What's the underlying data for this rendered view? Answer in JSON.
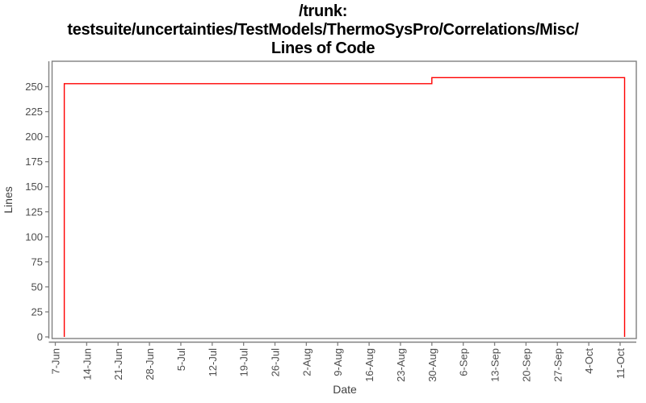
{
  "title": {
    "line1": "/trunk:",
    "line2": "testsuite/uncertainties/TestModels/ThermoSysPro/Correlations/Misc/",
    "line3": "Lines of Code"
  },
  "chart_data": {
    "type": "line",
    "line_style": "step",
    "title": "/trunk: testsuite/uncertainties/TestModels/ThermoSysPro/Correlations/Misc/ Lines of Code",
    "xlabel": "Date",
    "ylabel": "Lines",
    "grid": false,
    "legend": false,
    "ylim": [
      0,
      276
    ],
    "y_ticks": [
      0,
      25,
      50,
      75,
      100,
      125,
      150,
      175,
      200,
      225,
      250
    ],
    "x_tick_labels": [
      "7-Jun",
      "14-Jun",
      "21-Jun",
      "28-Jun",
      "5-Jul",
      "12-Jul",
      "19-Jul",
      "26-Jul",
      "2-Aug",
      "9-Aug",
      "16-Aug",
      "23-Aug",
      "30-Aug",
      "6-Sep",
      "13-Sep",
      "20-Sep",
      "27-Sep",
      "4-Oct",
      "11-Oct"
    ],
    "x_tick_days": [
      0,
      7,
      14,
      21,
      28,
      35,
      42,
      49,
      56,
      63,
      70,
      77,
      84,
      91,
      98,
      105,
      112,
      119,
      126
    ],
    "series": [
      {
        "name": "Lines of Code",
        "color": "#ff0000",
        "points": [
          {
            "date": "9-Jun",
            "day": 2,
            "lines": 0
          },
          {
            "date": "9-Jun",
            "day": 2,
            "lines": 253
          },
          {
            "date": "30-Aug",
            "day": 84,
            "lines": 253
          },
          {
            "date": "30-Aug",
            "day": 84,
            "lines": 259
          },
          {
            "date": "12-Oct",
            "day": 127,
            "lines": 259
          },
          {
            "date": "12-Oct",
            "day": 127,
            "lines": 0
          }
        ]
      }
    ],
    "colors": {
      "series": "#ff0000",
      "axis": "#808080",
      "tick_label": "#4d4d4d",
      "axis_title": "#404040",
      "title": "#000000",
      "background": "#ffffff"
    }
  }
}
